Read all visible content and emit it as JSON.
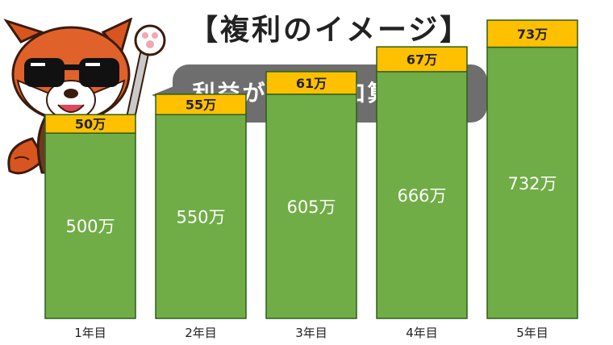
{
  "title": "【複利のイメージ】",
  "speech_bubble": "利益が元本に加算される",
  "colors": {
    "principal": "#70ad47",
    "interest": "#ffc000",
    "bar_border": "#2d5e1a",
    "bubble": "#6e6e6e"
  },
  "mascot": {
    "icon": "red-panda-with-sunglasses-icon"
  },
  "chart_data": {
    "type": "bar",
    "stacked": true,
    "categories": [
      "1年目",
      "2年目",
      "3年目",
      "4年目",
      "5年目"
    ],
    "series": [
      {
        "values": [
          500,
          550,
          605,
          666,
          732
        ],
        "labels": [
          "500万",
          "550万",
          "605万",
          "666万",
          "732万"
        ]
      },
      {
        "values": [
          50,
          55,
          61,
          67,
          73
        ],
        "labels": [
          "50万",
          "55万",
          "61万",
          "67万",
          "73万"
        ]
      }
    ],
    "title": "",
    "xlabel": "",
    "ylabel": "",
    "ylim": [
      0,
      805
    ],
    "grid": false,
    "legend": "none"
  }
}
